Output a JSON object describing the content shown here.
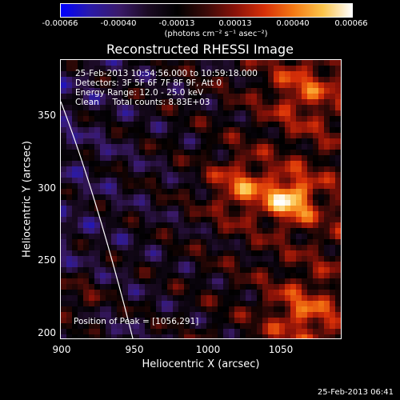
{
  "colorbar": {
    "ticks": [
      "-0.00066",
      "-0.00040",
      "-0.00013",
      "0.00013",
      "0.00040",
      "0.00066"
    ],
    "unit_label": "(photons cm⁻² s⁻¹ asec⁻²)",
    "colormap": [
      "#0000ff",
      "#2a1aa8",
      "#3a1a6a",
      "#1a0a22",
      "#000000",
      "#3a0a08",
      "#8a1208",
      "#d83008",
      "#f47a14",
      "#fcc44a",
      "#ffffff"
    ]
  },
  "title": "Reconstructed RHESSI Image",
  "info": {
    "time_range": "25-Feb-2013 10:54:56.000 to 10:59:18.000",
    "detectors": "Detectors: 3F 5F 6F 7F 8F 9F, Att 0",
    "energy": "Energy Range: 12.0 - 25.0 keV",
    "clean": "Clean     Total counts: 8.83E+03"
  },
  "peak_label": "Position of Peak = [1056,291]",
  "axes": {
    "xlabel": "Heliocentric X (arcsec)",
    "ylabel": "Heliocentric Y (arcsec)",
    "xticks": [
      "900",
      "950",
      "1000",
      "1050"
    ],
    "yticks": [
      "350",
      "300",
      "250",
      "200"
    ],
    "xlim": [
      900,
      1090
    ],
    "ylim": [
      196,
      385
    ]
  },
  "peak": {
    "x": 1056,
    "y": 291
  },
  "footer_date": "25-Feb-2013 06:41"
}
